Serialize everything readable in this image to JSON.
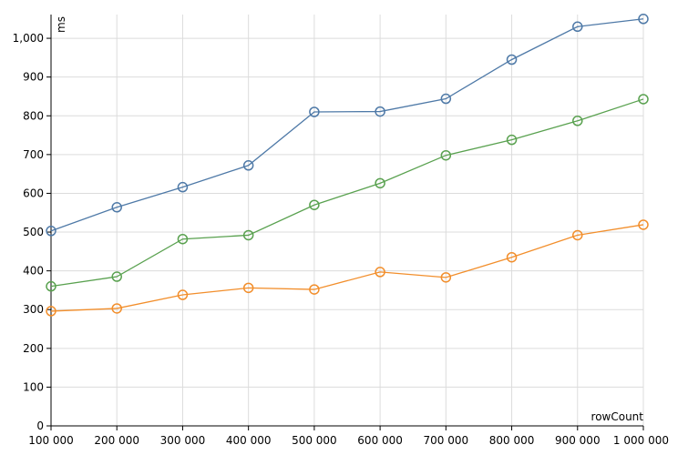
{
  "chart_data": {
    "type": "line",
    "title": "",
    "xlabel": "rowCount",
    "ylabel": "ms",
    "grid": true,
    "legend": "none",
    "x": [
      100000,
      200000,
      300000,
      400000,
      500000,
      600000,
      700000,
      800000,
      900000,
      1000000
    ],
    "xlim": [
      100000,
      1000000
    ],
    "ylim": [
      0,
      1080
    ],
    "x_ticks": [
      100000,
      200000,
      300000,
      400000,
      500000,
      600000,
      700000,
      800000,
      900000,
      1000000
    ],
    "x_tick_labels": [
      "100 000",
      "200 000",
      "300 000",
      "400 000",
      "500 000",
      "600 000",
      "700 000",
      "800 000",
      "900 000",
      "1 000 000"
    ],
    "y_ticks": [
      0,
      100,
      200,
      300,
      400,
      500,
      600,
      700,
      800,
      900,
      1000
    ],
    "y_tick_labels": [
      "0",
      "100",
      "200",
      "300",
      "400",
      "500",
      "600",
      "700",
      "800",
      "900",
      "1,000"
    ],
    "series": [
      {
        "color": "#4e79a7",
        "values": [
          503,
          564,
          616,
          672,
          810,
          811,
          844,
          945,
          1030,
          1050
        ]
      },
      {
        "color": "#59a14f",
        "values": [
          360,
          385,
          482,
          492,
          570,
          626,
          698,
          738,
          787,
          843
        ]
      },
      {
        "color": "#f28e2b",
        "values": [
          296,
          303,
          338,
          356,
          352,
          397,
          383,
          435,
          492,
          519
        ]
      }
    ]
  }
}
